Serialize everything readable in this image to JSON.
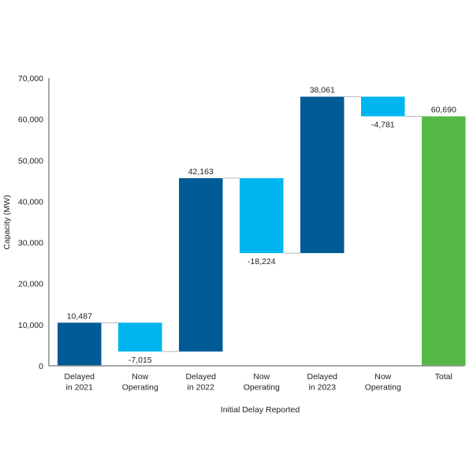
{
  "chart_data": {
    "type": "waterfall",
    "title": "",
    "xlabel": "Initial Delay Reported",
    "ylabel": "Capacity (MW)",
    "ylim": [
      0,
      70000
    ],
    "yticks": [
      0,
      10000,
      20000,
      30000,
      40000,
      50000,
      60000,
      70000
    ],
    "ytick_labels": [
      "0",
      "10,000",
      "20,000",
      "30,000",
      "40,000",
      "50,000",
      "60,000",
      "70,000"
    ],
    "grid": false,
    "categories": [
      [
        "Delayed",
        "in 2021"
      ],
      [
        "Now",
        "Operating"
      ],
      [
        "Delayed",
        "in 2022"
      ],
      [
        "Now",
        "Operating"
      ],
      [
        "Delayed",
        "in 2023"
      ],
      [
        "Now",
        "Operating"
      ],
      [
        "Total"
      ]
    ],
    "values": [
      10487,
      -7015,
      42163,
      -18224,
      38061,
      -4781,
      60690
    ],
    "value_labels": [
      "10,487",
      "-7,015",
      "42,163",
      "-18,224",
      "38,061",
      "-4,781",
      "60,690"
    ],
    "kinds": [
      "increase",
      "decrease",
      "increase",
      "decrease",
      "increase",
      "decrease",
      "total"
    ],
    "colors": {
      "increase": "#005a96",
      "decrease": "#00b5ef",
      "total": "#56b947",
      "connector": "#b8b8b8",
      "axis": "#8c8c8c"
    }
  }
}
